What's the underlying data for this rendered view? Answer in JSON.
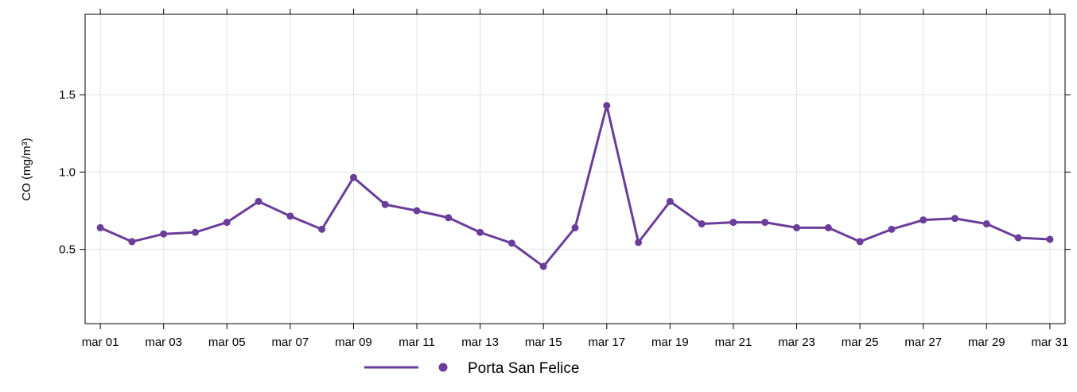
{
  "chart_data": {
    "type": "line",
    "y_label": "CO (mg/m³)",
    "categories": [
      "mar 01",
      null,
      "mar 03",
      null,
      "mar 05",
      null,
      "mar 07",
      null,
      "mar 09",
      null,
      "mar 11",
      null,
      "mar 13",
      null,
      "mar 15",
      null,
      "mar 17",
      null,
      "mar 19",
      null,
      "mar 21",
      null,
      "mar 23",
      null,
      "mar 25",
      null,
      "mar 27",
      null,
      "mar 29",
      null,
      "mar 31"
    ],
    "series": [
      {
        "name": "Porta San Felice",
        "color": "#6a3d9a",
        "values": [
          0.64,
          0.55,
          0.6,
          0.61,
          0.675,
          0.81,
          0.715,
          0.63,
          0.965,
          0.79,
          0.75,
          0.705,
          0.61,
          0.54,
          0.39,
          0.64,
          1.43,
          0.545,
          0.81,
          0.665,
          0.675,
          0.675,
          0.64,
          0.64,
          0.55,
          0.63,
          0.69,
          0.7,
          0.665,
          0.575,
          0.565
        ]
      }
    ],
    "ylim": [
      0.02,
      2.02
    ],
    "yticks": [
      0.5,
      {
        "value": 1,
        "label": "1.0"
      },
      1.5
    ],
    "grid": true
  }
}
